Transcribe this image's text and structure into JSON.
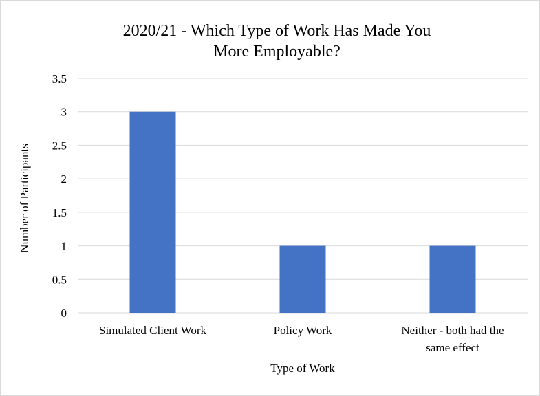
{
  "chart_data": {
    "type": "bar",
    "title": "2020/21 - Which Type of Work Has Made You More Employable?",
    "xlabel": "Type of Work",
    "ylabel": "Number of Participants",
    "categories": [
      [
        "Simulated Client Work"
      ],
      [
        "Policy Work"
      ],
      [
        "Neither - both had the",
        "same effect"
      ]
    ],
    "values": [
      3,
      1,
      1
    ],
    "ylim": [
      0,
      3.5
    ],
    "yticks": [
      "0",
      "0.5",
      "1",
      "1.5",
      "2",
      "2.5",
      "3",
      "3.5"
    ],
    "grid": true,
    "legend": "none",
    "bar_color": "#4472c4",
    "grid_color": "#d9d9d9"
  }
}
